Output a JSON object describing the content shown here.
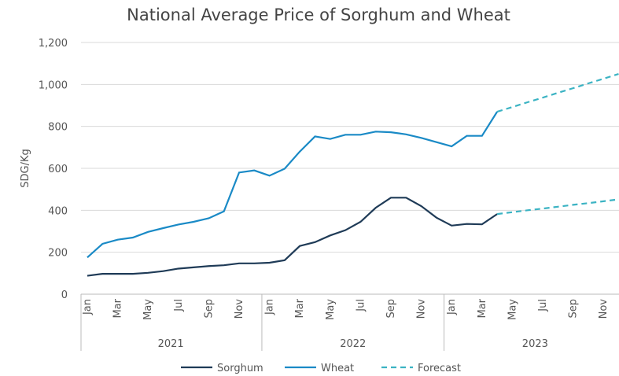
{
  "chart_data": {
    "type": "line",
    "title": "National Average Price of Sorghum and Wheat",
    "y_label": "SDG/Kg",
    "categories": [
      "Jan",
      null,
      "Mar",
      null,
      "May",
      null,
      "Jul",
      null,
      "Sep",
      null,
      "Nov",
      null,
      "Jan",
      null,
      "Mar",
      null,
      "May",
      null,
      "Jul",
      null,
      "Sep",
      null,
      "Nov",
      null,
      "Jan",
      null,
      "Mar",
      null,
      "May",
      null,
      "Jul",
      null,
      "Sep",
      null,
      "Nov",
      null
    ],
    "years": [
      "2021",
      "2022",
      "2023"
    ],
    "ylim": [
      0,
      1200
    ],
    "yticks": [
      0,
      200,
      400,
      600,
      800,
      {
        "value": 1000,
        "label": "1,000"
      },
      {
        "value": 1200,
        "label": "1,200"
      }
    ],
    "grid": true,
    "series": [
      {
        "name": "Sorghum",
        "color": "#1f3b57",
        "values": [
          88,
          97,
          97,
          97,
          102,
          110,
          122,
          128,
          134,
          138,
          147,
          147,
          150,
          162,
          230,
          248,
          280,
          305,
          345,
          412,
          460,
          460,
          420,
          365,
          327,
          335,
          333,
          382,
          null,
          null,
          null,
          null,
          null,
          null,
          null,
          null
        ]
      },
      {
        "name": "Wheat",
        "color": "#1a8ac6",
        "values": [
          175,
          240,
          260,
          270,
          297,
          315,
          332,
          345,
          362,
          395,
          580,
          590,
          565,
          598,
          680,
          752,
          740,
          760,
          760,
          775,
          772,
          762,
          745,
          725,
          705,
          755,
          755,
          870,
          null,
          null,
          null,
          null,
          null,
          null,
          null,
          null
        ]
      },
      {
        "name": "Forecast",
        "color": "#3bb3c3",
        "dashed": true,
        "lines": [
          [
            null,
            null,
            null,
            null,
            null,
            null,
            null,
            null,
            null,
            null,
            null,
            null,
            null,
            null,
            null,
            null,
            null,
            null,
            null,
            null,
            null,
            null,
            null,
            null,
            null,
            null,
            null,
            870,
            892,
            915,
            937,
            960,
            982,
            1005,
            1027,
            1050
          ],
          [
            null,
            null,
            null,
            null,
            null,
            null,
            null,
            null,
            null,
            null,
            null,
            null,
            null,
            null,
            null,
            null,
            null,
            null,
            null,
            null,
            null,
            null,
            null,
            null,
            null,
            null,
            null,
            382,
            391,
            400,
            408,
            417,
            426,
            434,
            443,
            452
          ]
        ]
      }
    ]
  }
}
